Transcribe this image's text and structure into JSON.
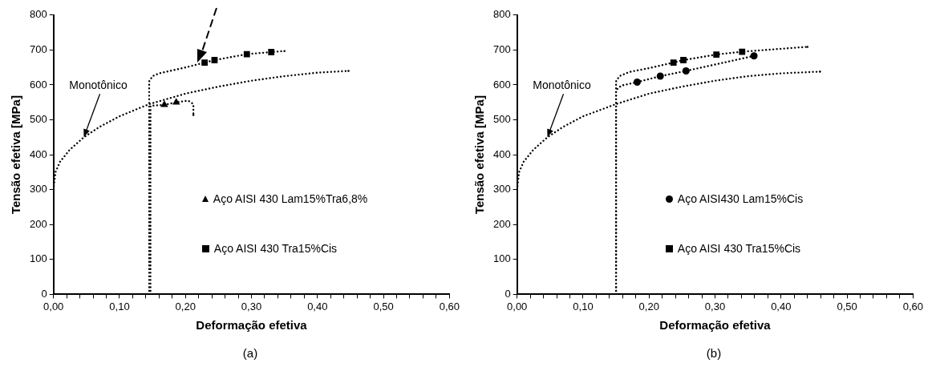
{
  "chart_data": [
    {
      "type": "line",
      "xlabel": "Deformação efetiva",
      "ylabel": "Tensão efetiva [MPa]",
      "xlim": [
        0,
        0.6
      ],
      "ylim": [
        0,
        800
      ],
      "xticks": [
        {
          "value": 0,
          "label": "0,00"
        },
        {
          "value": 0.02,
          "label": null
        },
        {
          "value": 0.04,
          "label": null
        },
        {
          "value": 0.06,
          "label": null
        },
        {
          "value": 0.08,
          "label": null
        },
        {
          "value": 0.1,
          "label": "0,10"
        },
        {
          "value": 0.12,
          "label": null
        },
        {
          "value": 0.14,
          "label": null
        },
        {
          "value": 0.16,
          "label": null
        },
        {
          "value": 0.18,
          "label": null
        },
        {
          "value": 0.2,
          "label": "0,20"
        },
        {
          "value": 0.22,
          "label": null
        },
        {
          "value": 0.24,
          "label": null
        },
        {
          "value": 0.26,
          "label": null
        },
        {
          "value": 0.28,
          "label": null
        },
        {
          "value": 0.3,
          "label": "0,30"
        },
        {
          "value": 0.32,
          "label": null
        },
        {
          "value": 0.34,
          "label": null
        },
        {
          "value": 0.36,
          "label": null
        },
        {
          "value": 0.38,
          "label": null
        },
        {
          "value": 0.4,
          "label": "0,40"
        },
        {
          "value": 0.42,
          "label": null
        },
        {
          "value": 0.44,
          "label": null
        },
        {
          "value": 0.46,
          "label": null
        },
        {
          "value": 0.48,
          "label": null
        },
        {
          "value": 0.5,
          "label": "0,50"
        },
        {
          "value": 0.52,
          "label": null
        },
        {
          "value": 0.54,
          "label": null
        },
        {
          "value": 0.56,
          "label": null
        },
        {
          "value": 0.58,
          "label": null
        },
        {
          "value": 0.6,
          "label": "0,60"
        }
      ],
      "yticks": [
        0,
        100,
        200,
        300,
        400,
        500,
        600,
        700,
        800
      ],
      "legend": "bottom right",
      "annotations": [
        {
          "text": "Monotônico",
          "x": 0.046,
          "y": 450
        },
        "(a)"
      ],
      "series": [
        {
          "x": [
            0,
            0,
            0.003,
            0.01,
            0.025,
            0.046,
            0.07,
            0.1,
            0.145,
            0.2,
            0.25,
            0.3,
            0.35,
            0.4,
            0.447
          ],
          "values": [
            0,
            300,
            350,
            380,
            415,
            450,
            480,
            510,
            545,
            575,
            595,
            612,
            625,
            635,
            640
          ],
          "color": "#000000",
          "line_style": "dotted",
          "marker": "none"
        },
        {
          "x": [
            0.145,
            0.145,
            0.15,
            0.16,
            0.2,
            0.229,
            0.244,
            0.293,
            0.33,
            0.35
          ],
          "values": [
            0,
            610,
            625,
            633,
            650,
            664,
            671,
            688,
            694,
            697
          ],
          "color": "#000000",
          "line_style": "dotted",
          "marker": "none"
        },
        {
          "x": [
            0.147,
            0.147,
            0.168,
            0.186,
            0.204,
            0.212,
            0.212
          ],
          "values": [
            0,
            540,
            543,
            550,
            555,
            545,
            514
          ],
          "color": "#000000",
          "line_style": "dotted",
          "marker": "none"
        },
        {
          "type": "scatter",
          "name": "Aço AISI 430 Lam15%Tra6,8%",
          "x": [
            0.168,
            0.186
          ],
          "values": [
            543,
            550
          ],
          "color": "#000000",
          "marker": "triangle"
        },
        {
          "type": "scatter",
          "name": "Aço AISI 430 Tra15%Cis",
          "x": [
            0.229,
            0.244,
            0.293,
            0.33
          ],
          "values": [
            664,
            671,
            688,
            694
          ],
          "color": "#000000",
          "marker": "square"
        }
      ]
    },
    {
      "type": "line",
      "xlabel": "Deformação efetiva",
      "ylabel": "Tensão efetiva [MPa]",
      "xlim": [
        0,
        0.6
      ],
      "ylim": [
        0,
        800
      ],
      "xticks": [
        {
          "value": 0,
          "label": "0,00"
        },
        {
          "value": 0.02,
          "label": null
        },
        {
          "value": 0.04,
          "label": null
        },
        {
          "value": 0.06,
          "label": null
        },
        {
          "value": 0.08,
          "label": null
        },
        {
          "value": 0.1,
          "label": "0,10"
        },
        {
          "value": 0.12,
          "label": null
        },
        {
          "value": 0.14,
          "label": null
        },
        {
          "value": 0.16,
          "label": null
        },
        {
          "value": 0.18,
          "label": null
        },
        {
          "value": 0.2,
          "label": "0,20"
        },
        {
          "value": 0.22,
          "label": null
        },
        {
          "value": 0.24,
          "label": null
        },
        {
          "value": 0.26,
          "label": null
        },
        {
          "value": 0.28,
          "label": null
        },
        {
          "value": 0.3,
          "label": "0,30"
        },
        {
          "value": 0.32,
          "label": null
        },
        {
          "value": 0.34,
          "label": null
        },
        {
          "value": 0.36,
          "label": null
        },
        {
          "value": 0.38,
          "label": null
        },
        {
          "value": 0.4,
          "label": "0,40"
        },
        {
          "value": 0.42,
          "label": null
        },
        {
          "value": 0.44,
          "label": null
        },
        {
          "value": 0.46,
          "label": null
        },
        {
          "value": 0.48,
          "label": null
        },
        {
          "value": 0.5,
          "label": "0,50"
        },
        {
          "value": 0.52,
          "label": null
        },
        {
          "value": 0.54,
          "label": null
        },
        {
          "value": 0.56,
          "label": null
        },
        {
          "value": 0.58,
          "label": null
        },
        {
          "value": 0.6,
          "label": "0,60"
        }
      ],
      "yticks": [
        0,
        100,
        200,
        300,
        400,
        500,
        600,
        700,
        800
      ],
      "legend": "bottom right",
      "annotations": [
        {
          "text": "Monotônico",
          "x": 0.046,
          "y": 450
        },
        "(b)"
      ],
      "series": [
        {
          "x": [
            0,
            0,
            0.003,
            0.01,
            0.025,
            0.046,
            0.07,
            0.1,
            0.15,
            0.2,
            0.25,
            0.3,
            0.35,
            0.4,
            0.459
          ],
          "values": [
            0,
            300,
            350,
            380,
            415,
            450,
            480,
            510,
            545,
            575,
            595,
            612,
            625,
            633,
            638
          ],
          "color": "#000000",
          "line_style": "dotted",
          "marker": "none"
        },
        {
          "x": [
            0.15,
            0.15,
            0.155,
            0.17,
            0.2,
            0.237,
            0.252,
            0.302,
            0.341,
            0.44
          ],
          "values": [
            0,
            610,
            625,
            637,
            648,
            664,
            671,
            687,
            695,
            709
          ],
          "color": "#000000",
          "line_style": "dotted",
          "marker": "none"
        },
        {
          "x": [
            0.15,
            0.15,
            0.158,
            0.182,
            0.217,
            0.256,
            0.359
          ],
          "values": [
            0,
            585,
            598,
            608,
            625,
            640,
            683
          ],
          "color": "#000000",
          "line_style": "dotted",
          "marker": "none"
        },
        {
          "type": "scatter",
          "name": "Aço AISI430 Lam15%Cis",
          "x": [
            0.182,
            0.217,
            0.256,
            0.359
          ],
          "values": [
            608,
            625,
            640,
            683
          ],
          "color": "#000000",
          "marker": "circle"
        },
        {
          "type": "scatter",
          "name": "Aço AISI 430 Tra15%Cis",
          "x": [
            0.237,
            0.252,
            0.302,
            0.341
          ],
          "values": [
            664,
            671,
            687,
            695
          ],
          "color": "#000000",
          "marker": "square"
        }
      ]
    }
  ]
}
